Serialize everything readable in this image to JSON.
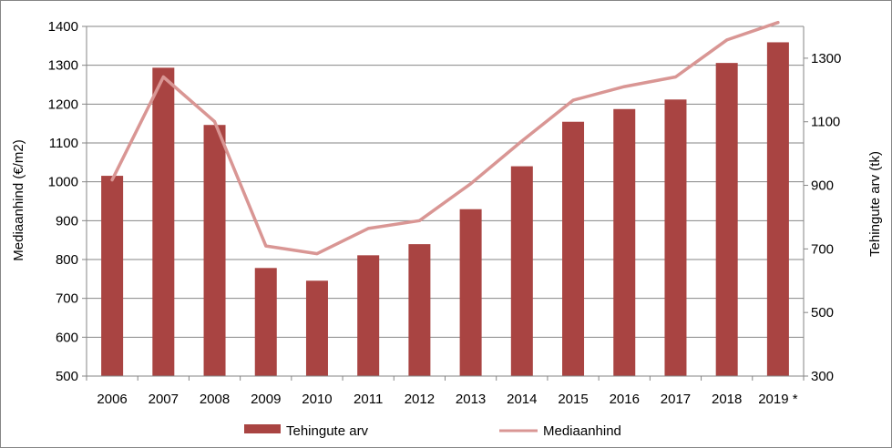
{
  "chart_data": {
    "type": "bar",
    "categories": [
      "2006",
      "2007",
      "2008",
      "2009",
      "2010",
      "2011",
      "2012",
      "2013",
      "2014",
      "2015",
      "2016",
      "2017",
      "2018",
      "2019 *"
    ],
    "series": [
      {
        "name": "Tehingute arv",
        "type": "bar",
        "axis": "right",
        "color": "#a94442",
        "values": [
          930,
          1270,
          1090,
          640,
          600,
          680,
          715,
          825,
          960,
          1100,
          1140,
          1170,
          1285,
          1350
        ]
      },
      {
        "name": "Mediaanhind",
        "type": "line",
        "axis": "left",
        "color": "#d99694",
        "values": [
          1005,
          1270,
          1155,
          835,
          815,
          880,
          900,
          995,
          1105,
          1210,
          1245,
          1270,
          1365,
          1410
        ]
      }
    ],
    "y_left": {
      "label": "Mediaanhind (€/m2)",
      "ticks": [
        500,
        600,
        700,
        800,
        900,
        1000,
        1100,
        1200,
        1300,
        1400
      ],
      "ylim": [
        500,
        1400
      ]
    },
    "y_right": {
      "label": "Tehingute arv (tk)",
      "ticks": [
        300,
        500,
        700,
        900,
        1100,
        1300
      ],
      "ylim": [
        300,
        1400
      ]
    },
    "grid": true,
    "legend": "bottom"
  }
}
